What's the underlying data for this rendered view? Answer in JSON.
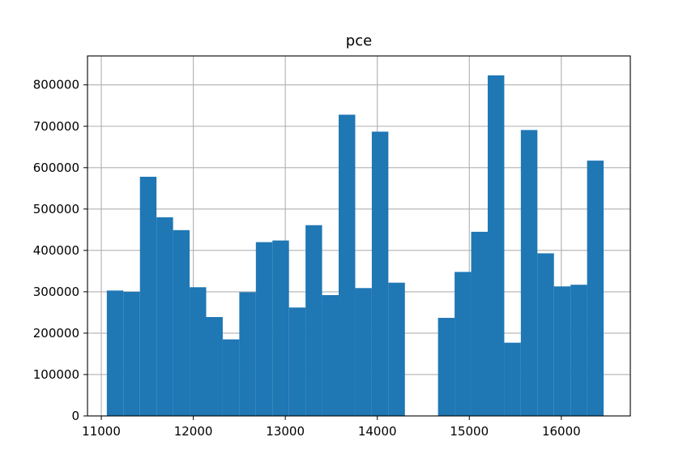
{
  "chart_data": {
    "type": "bar",
    "title": "pce",
    "xlabel": "",
    "ylabel": "",
    "grid": true,
    "color": "#1f77b4",
    "xlim": [
      10850,
      16750
    ],
    "ylim": [
      0,
      870000
    ],
    "bins": [
      {
        "x0": 11060,
        "x1": 11240,
        "value": 303000
      },
      {
        "x0": 11240,
        "x1": 11420,
        "value": 300000
      },
      {
        "x0": 11420,
        "x1": 11600,
        "value": 578000
      },
      {
        "x0": 11600,
        "x1": 11780,
        "value": 480000
      },
      {
        "x0": 11780,
        "x1": 11960,
        "value": 449000
      },
      {
        "x0": 11960,
        "x1": 12140,
        "value": 311000
      },
      {
        "x0": 12140,
        "x1": 12320,
        "value": 239000
      },
      {
        "x0": 12320,
        "x1": 12500,
        "value": 185000
      },
      {
        "x0": 12500,
        "x1": 12680,
        "value": 299000
      },
      {
        "x0": 12680,
        "x1": 12860,
        "value": 420000
      },
      {
        "x0": 12860,
        "x1": 13040,
        "value": 424000
      },
      {
        "x0": 13040,
        "x1": 13220,
        "value": 262000
      },
      {
        "x0": 13220,
        "x1": 13400,
        "value": 461000
      },
      {
        "x0": 13400,
        "x1": 13580,
        "value": 292000
      },
      {
        "x0": 13580,
        "x1": 13760,
        "value": 728000
      },
      {
        "x0": 13760,
        "x1": 13940,
        "value": 309000
      },
      {
        "x0": 13940,
        "x1": 14120,
        "value": 687000
      },
      {
        "x0": 14120,
        "x1": 14300,
        "value": 322000
      },
      {
        "x0": 14300,
        "x1": 14480,
        "value": 0
      },
      {
        "x0": 14480,
        "x1": 14660,
        "value": 0
      },
      {
        "x0": 14660,
        "x1": 14840,
        "value": 237000
      },
      {
        "x0": 14840,
        "x1": 15020,
        "value": 348000
      },
      {
        "x0": 15020,
        "x1": 15200,
        "value": 445000
      },
      {
        "x0": 15200,
        "x1": 15380,
        "value": 823000
      },
      {
        "x0": 15380,
        "x1": 15560,
        "value": 177000
      },
      {
        "x0": 15560,
        "x1": 15740,
        "value": 691000
      },
      {
        "x0": 15740,
        "x1": 15920,
        "value": 393000
      },
      {
        "x0": 15920,
        "x1": 16100,
        "value": 313000
      },
      {
        "x0": 16100,
        "x1": 16280,
        "value": 317000
      },
      {
        "x0": 16280,
        "x1": 16460,
        "value": 617000
      }
    ],
    "xticks": [
      11000,
      12000,
      13000,
      14000,
      15000,
      16000
    ],
    "xtick_labels": [
      "11000",
      "12000",
      "13000",
      "14000",
      "15000",
      "16000"
    ],
    "yticks": [
      0,
      100000,
      200000,
      300000,
      400000,
      500000,
      600000,
      700000,
      800000
    ],
    "ytick_labels": [
      "0",
      "100000",
      "200000",
      "300000",
      "400000",
      "500000",
      "600000",
      "700000",
      "800000"
    ]
  }
}
